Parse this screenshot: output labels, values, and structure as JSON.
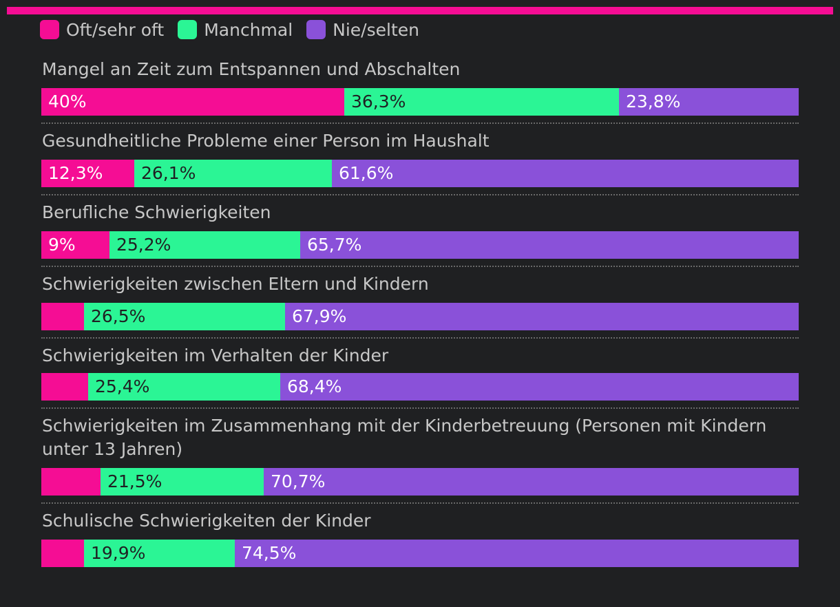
{
  "legend": {
    "items": [
      {
        "label": "Oft/sehr oft",
        "color": "#f50d94"
      },
      {
        "label": "Manchmal",
        "color": "#2bf595"
      },
      {
        "label": "Nie/selten",
        "color": "#8a51d9"
      }
    ]
  },
  "chart_data": {
    "type": "bar",
    "orientation": "horizontal",
    "stacked": true,
    "unit": "%",
    "series_names": [
      "Oft/sehr oft",
      "Manchmal",
      "Nie/selten"
    ],
    "colors": [
      "#f50d94",
      "#2bf595",
      "#8a51d9"
    ],
    "rows": [
      {
        "category": "Mangel an Zeit zum Entspannen und Abschalten",
        "values": [
          40,
          36.3,
          23.8
        ],
        "labels": [
          "40%",
          "36,3%",
          "23,8%"
        ]
      },
      {
        "category": "Gesundheitliche Probleme einer Person im Haushalt",
        "values": [
          12.3,
          26.1,
          61.6
        ],
        "labels": [
          "12,3%",
          "26,1%",
          "61,6%"
        ]
      },
      {
        "category": "Berufliche Schwierigkeiten",
        "values": [
          9,
          25.2,
          65.7
        ],
        "labels": [
          "9%",
          "25,2%",
          "65,7%"
        ]
      },
      {
        "category": "Schwierigkeiten zwischen Eltern und Kindern",
        "values": [
          5.6,
          26.5,
          67.9
        ],
        "labels": [
          "",
          "26,5%",
          "67,9%"
        ]
      },
      {
        "category": "Schwierigkeiten im Verhalten der Kinder",
        "values": [
          6.2,
          25.4,
          68.4
        ],
        "labels": [
          "",
          "25,4%",
          "68,4%"
        ]
      },
      {
        "category": "Schwierigkeiten im Zusammenhang mit der Kinderbetreuung (Personen mit Kindern unter 13 Jahren)",
        "values": [
          7.8,
          21.5,
          70.7
        ],
        "labels": [
          "",
          "21,5%",
          "70,7%"
        ]
      },
      {
        "category": "Schulische Schwierigkeiten der Kinder",
        "values": [
          5.6,
          19.9,
          74.5
        ],
        "labels": [
          "",
          "19,9%",
          "74,5%"
        ]
      }
    ]
  }
}
